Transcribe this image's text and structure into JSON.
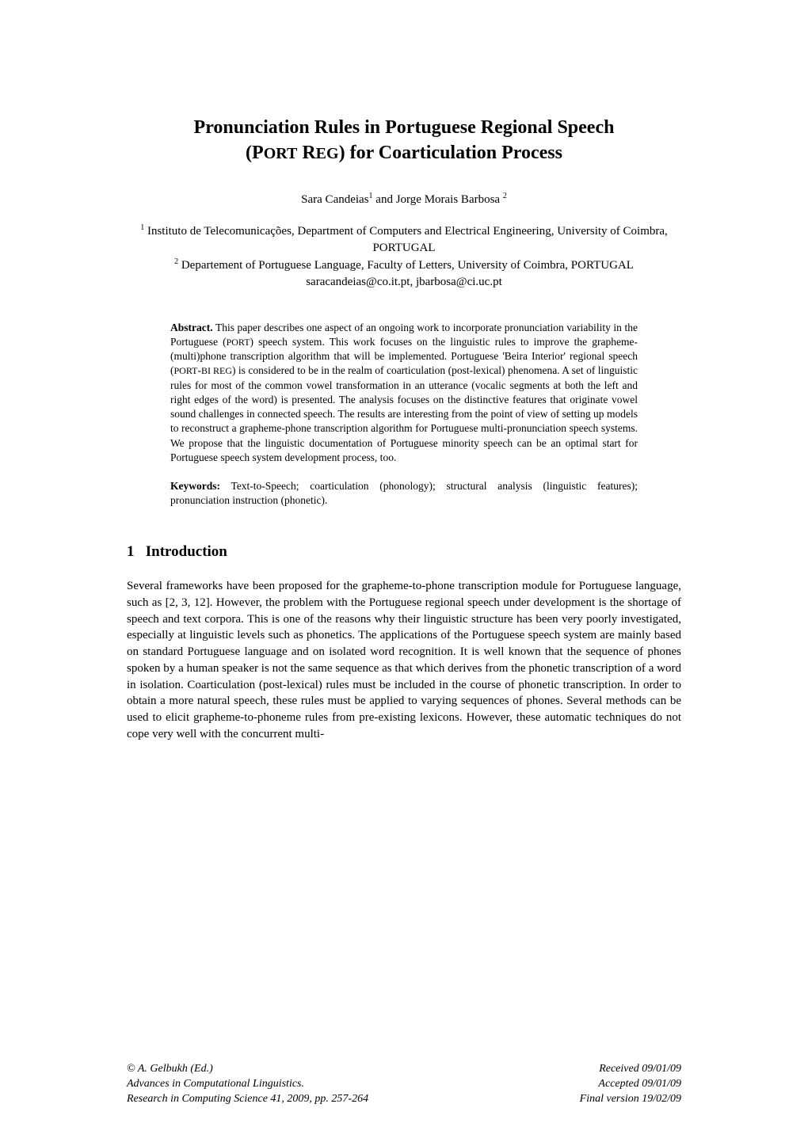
{
  "title": {
    "line1": "Pronunciation Rules in Portuguese Regional Speech",
    "line2_prefix": "(P",
    "line2_ort": "ORT",
    "line2_mid": " R",
    "line2_eg": "EG",
    "line2_suffix": ") for Coarticulation Process"
  },
  "authors": {
    "a1_name": "Sara Candeias",
    "a1_sup": "1",
    "and": " and ",
    "a2_name": "Jorge Morais Barbosa ",
    "a2_sup": "2"
  },
  "affiliations": {
    "aff1_sup": "1",
    "aff1": " Instituto de Telecomunicações, Department of Computers and Electrical Engineering, University of Coimbra, PORTUGAL",
    "aff2_sup": "2",
    "aff2": " Departement of Portuguese Language, Faculty of Letters, University of Coimbra, PORTUGAL",
    "emails": "saracandeias@co.it.pt, jbarbosa@ci.uc.pt"
  },
  "abstract": {
    "label": "Abstract.",
    "text_a": " This paper describes one aspect of an ongoing work to incorporate pronunciation variability in the Portuguese (",
    "port1": "PORT",
    "text_b": ") speech system. This work focuses on the linguistic rules to improve the grapheme-(multi)phone transcription algorithm that will be implemented.  Portuguese 'Beira Interior' regional speech (",
    "port2": "PORT",
    "dash": "-",
    "bireg": "BI REG",
    "text_c": ") is considered to be in the realm of coarticulation (post-lexical) phenomena. A set of linguistic rules for most of the common vowel transformation in an utterance (vocalic segments at both the left and right edges of the word) is presented. The analysis focuses on the distinctive features that originate vowel sound challenges in connected speech. The results are interesting from the point of view of setting up models to reconstruct a grapheme-phone transcription algorithm for Portuguese multi-pronunciation speech systems. We propose that the linguistic documentation of Portuguese minority speech can be an optimal start for Portuguese speech system development process, too."
  },
  "keywords": {
    "label": "Keywords:",
    "text": " Text-to-Speech; coarticulation (phonology); structural analysis (linguistic features); pronunciation instruction (phonetic)."
  },
  "section": {
    "number": "1",
    "title": "Introduction"
  },
  "body": "Several frameworks have been proposed for the grapheme-to-phone transcription module for Portuguese language, such as [2, 3, 12]. However, the problem with the Portuguese regional speech under development is the shortage of speech and text corpora. This is one of the reasons why their linguistic structure has been very poorly investigated, especially at linguistic levels such as phonetics. The applications of the Portuguese speech system are mainly based on standard Portuguese language and on isolated word recognition. It is well known that the sequence of phones spoken by a human speaker is not the same sequence as that which derives from the phonetic transcription of a word in isolation. Coarticulation (post-lexical) rules must be included in the course of phonetic transcription. In order to obtain a more natural speech, these rules must be applied to varying sequences of phones. Several methods can be used to elicit grapheme-to-phoneme rules from pre-existing lexicons. However, these automatic techniques do not cope very well with the concurrent multi-",
  "footer": {
    "left1": "© A. Gelbukh (Ed.)",
    "left2": "Advances in Computational Linguistics.",
    "left3": "Research in Computing Science 41, 2009, pp. 257-264",
    "right1": "Received 09/01/09",
    "right2": "Accepted 09/01/09",
    "right3": "Final version 19/02/09"
  }
}
